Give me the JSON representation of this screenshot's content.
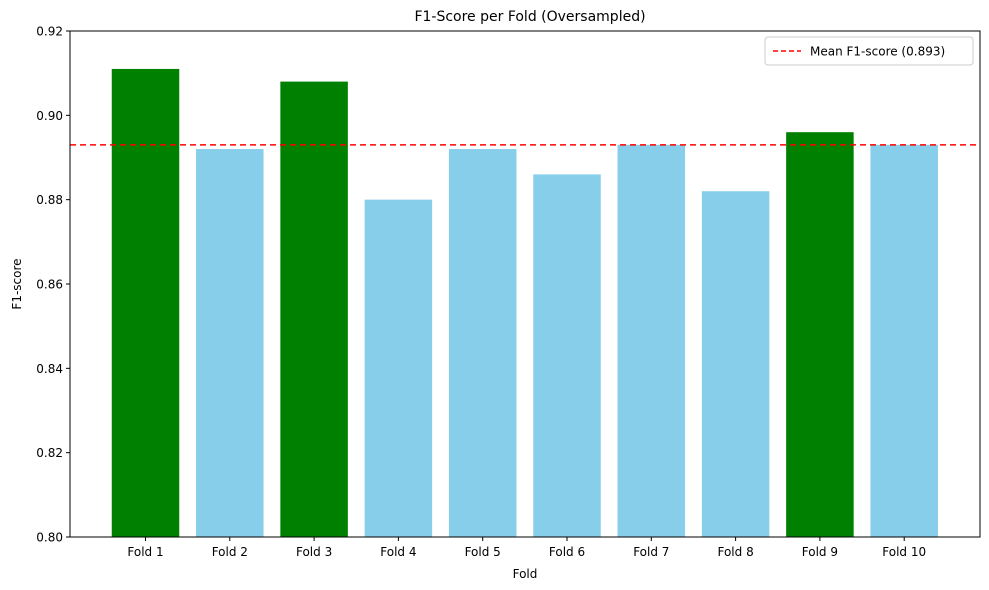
{
  "chart_data": {
    "type": "bar",
    "title": "F1-Score per Fold (Oversampled)",
    "xlabel": "Fold",
    "ylabel": "F1-score",
    "ylim": [
      0.8,
      0.92
    ],
    "yticks": [
      0.8,
      0.82,
      0.84,
      0.86,
      0.88,
      0.9,
      0.92
    ],
    "ytick_labels": [
      "0.80",
      "0.82",
      "0.84",
      "0.86",
      "0.88",
      "0.90",
      "0.92"
    ],
    "categories": [
      "Fold 1",
      "Fold 2",
      "Fold 3",
      "Fold 4",
      "Fold 5",
      "Fold 6",
      "Fold 7",
      "Fold 8",
      "Fold 9",
      "Fold 10"
    ],
    "values": [
      0.911,
      0.892,
      0.908,
      0.88,
      0.892,
      0.886,
      0.893,
      0.882,
      0.896,
      0.893
    ],
    "above_mean_color": "#008000",
    "below_mean_color": "#87ceeb",
    "mean_line": {
      "value": 0.893,
      "color": "#ff0000",
      "style": "dashed",
      "label": "Mean F1-score (0.893)"
    },
    "grid": false,
    "legend_position": "top-right"
  }
}
